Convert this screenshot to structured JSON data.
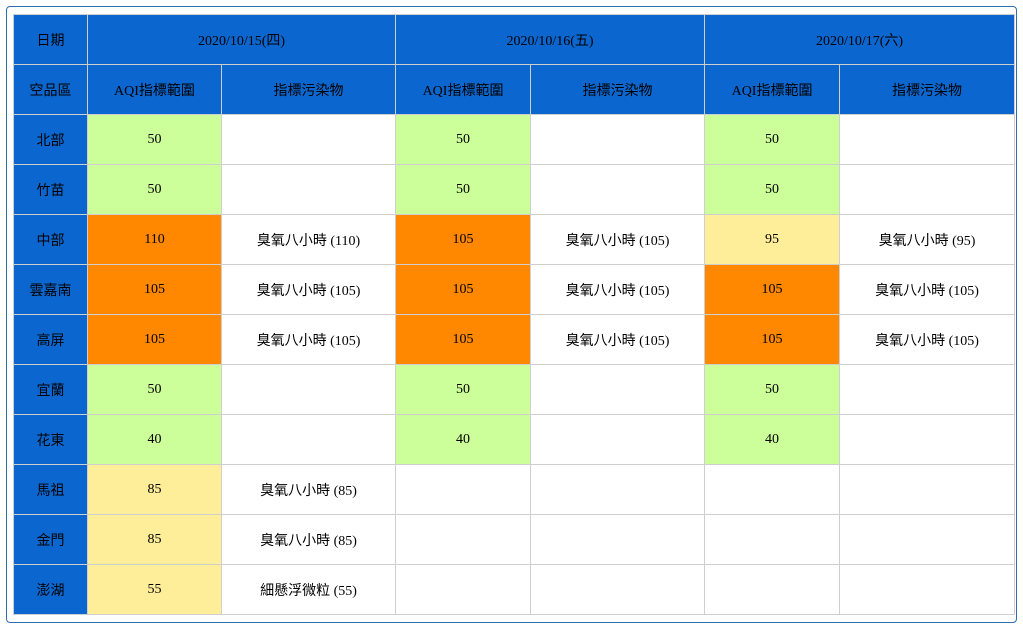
{
  "header": {
    "date_label": "日期",
    "region_label": "空品區",
    "aqi_range_label": "AQI指標範圍",
    "pollutant_label": "指標污染物",
    "dates": [
      "2020/10/15(四)",
      "2020/10/16(五)",
      "2020/10/17(六)"
    ]
  },
  "colors": {
    "header_bg": "#0b67cf",
    "good": "#ccff99",
    "moderate": "#ffee99",
    "unhealthy_sensitive": "#ff8800"
  },
  "rows": [
    {
      "region": "北部",
      "days": [
        {
          "aqi": "50",
          "level": "green",
          "pollutant": ""
        },
        {
          "aqi": "50",
          "level": "green",
          "pollutant": ""
        },
        {
          "aqi": "50",
          "level": "green",
          "pollutant": ""
        }
      ]
    },
    {
      "region": "竹苗",
      "days": [
        {
          "aqi": "50",
          "level": "green",
          "pollutant": ""
        },
        {
          "aqi": "50",
          "level": "green",
          "pollutant": ""
        },
        {
          "aqi": "50",
          "level": "green",
          "pollutant": ""
        }
      ]
    },
    {
      "region": "中部",
      "days": [
        {
          "aqi": "110",
          "level": "orange",
          "pollutant": "臭氧八小時 (110)"
        },
        {
          "aqi": "105",
          "level": "orange",
          "pollutant": "臭氧八小時 (105)"
        },
        {
          "aqi": "95",
          "level": "yellow",
          "pollutant": "臭氧八小時 (95)"
        }
      ]
    },
    {
      "region": "雲嘉南",
      "days": [
        {
          "aqi": "105",
          "level": "orange",
          "pollutant": "臭氧八小時 (105)"
        },
        {
          "aqi": "105",
          "level": "orange",
          "pollutant": "臭氧八小時 (105)"
        },
        {
          "aqi": "105",
          "level": "orange",
          "pollutant": "臭氧八小時 (105)"
        }
      ]
    },
    {
      "region": "高屏",
      "days": [
        {
          "aqi": "105",
          "level": "orange",
          "pollutant": "臭氧八小時 (105)"
        },
        {
          "aqi": "105",
          "level": "orange",
          "pollutant": "臭氧八小時 (105)"
        },
        {
          "aqi": "105",
          "level": "orange",
          "pollutant": "臭氧八小時 (105)"
        }
      ]
    },
    {
      "region": "宜蘭",
      "days": [
        {
          "aqi": "50",
          "level": "green",
          "pollutant": ""
        },
        {
          "aqi": "50",
          "level": "green",
          "pollutant": ""
        },
        {
          "aqi": "50",
          "level": "green",
          "pollutant": ""
        }
      ]
    },
    {
      "region": "花東",
      "days": [
        {
          "aqi": "40",
          "level": "green",
          "pollutant": ""
        },
        {
          "aqi": "40",
          "level": "green",
          "pollutant": ""
        },
        {
          "aqi": "40",
          "level": "green",
          "pollutant": ""
        }
      ]
    },
    {
      "region": "馬祖",
      "days": [
        {
          "aqi": "85",
          "level": "yellow",
          "pollutant": "臭氧八小時 (85)"
        },
        {
          "aqi": "",
          "level": "empty",
          "pollutant": ""
        },
        {
          "aqi": "",
          "level": "empty",
          "pollutant": ""
        }
      ]
    },
    {
      "region": "金門",
      "days": [
        {
          "aqi": "85",
          "level": "yellow",
          "pollutant": "臭氧八小時 (85)"
        },
        {
          "aqi": "",
          "level": "empty",
          "pollutant": ""
        },
        {
          "aqi": "",
          "level": "empty",
          "pollutant": ""
        }
      ]
    },
    {
      "region": "澎湖",
      "days": [
        {
          "aqi": "55",
          "level": "yellow",
          "pollutant": "細懸浮微粒 (55)"
        },
        {
          "aqi": "",
          "level": "empty",
          "pollutant": ""
        },
        {
          "aqi": "",
          "level": "empty",
          "pollutant": ""
        }
      ]
    }
  ]
}
